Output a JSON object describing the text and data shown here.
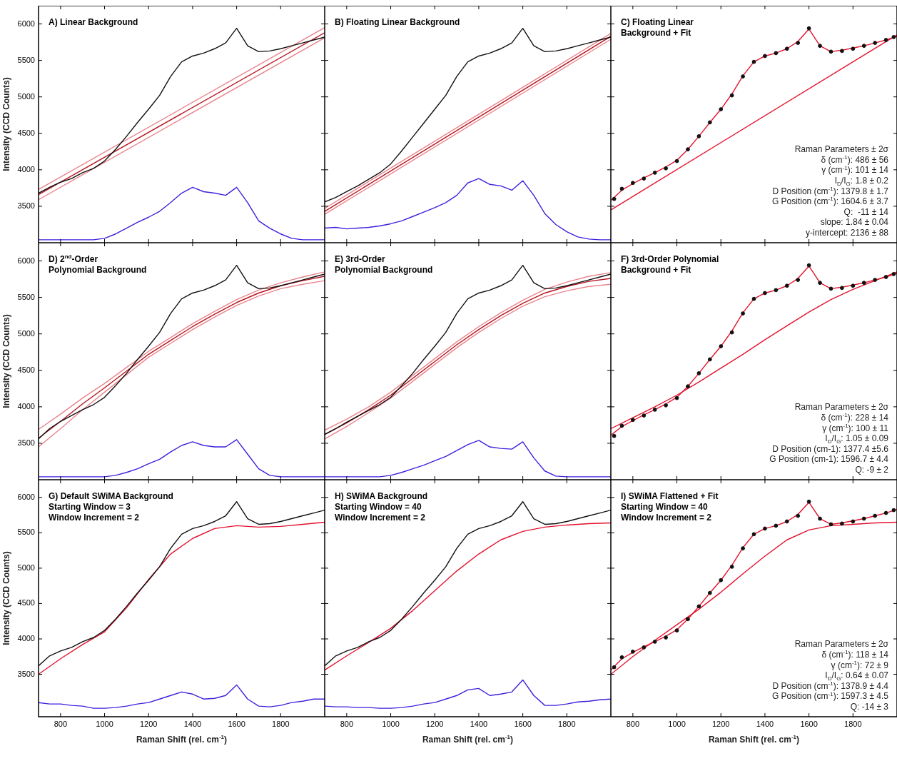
{
  "chart_data": [
    {
      "type": "line",
      "title": "A) Linear Background",
      "ylabel": "Intensity (CCD Counts)",
      "xlim": [
        700,
        2000
      ],
      "ylim": [
        3000,
        6250
      ],
      "xticks": [
        800,
        1000,
        1200,
        1400,
        1600,
        1800
      ],
      "yticks": [
        3500,
        4000,
        4500,
        5000,
        5500,
        6000
      ],
      "tick_labels": "y",
      "x": [
        700,
        750,
        800,
        850,
        900,
        950,
        1000,
        1050,
        1100,
        1150,
        1200,
        1250,
        1300,
        1350,
        1400,
        1450,
        1500,
        1550,
        1600,
        1650,
        1700,
        1750,
        1800,
        1850,
        1900,
        1950,
        2000
      ],
      "series": [
        {
          "color": "#111111",
          "values": [
            3680,
            3760,
            3830,
            3880,
            3960,
            4020,
            4120,
            4280,
            4460,
            4650,
            4830,
            5020,
            5280,
            5480,
            5560,
            5600,
            5660,
            5740,
            5940,
            5700,
            5620,
            5630,
            5660,
            5700,
            5740,
            5780,
            5820
          ]
        },
        {
          "color": "#3b22dd",
          "values": [
            3040,
            3040,
            3040,
            3040,
            3040,
            3040,
            3060,
            3120,
            3200,
            3280,
            3350,
            3430,
            3550,
            3680,
            3760,
            3700,
            3680,
            3650,
            3760,
            3550,
            3300,
            3200,
            3120,
            3060,
            3040,
            3040,
            3040
          ]
        },
        {
          "color": "#e8848c",
          "x": [
            700,
            2000
          ],
          "values": [
            3590,
            5810
          ]
        },
        {
          "color": "#e8848c",
          "x": [
            700,
            2000
          ],
          "values": [
            3730,
            5950
          ]
        },
        {
          "color": "#b5121b",
          "x": [
            700,
            2000
          ],
          "values": [
            3660,
            5880
          ]
        }
      ]
    },
    {
      "type": "line",
      "title": "B) Floating Linear Background",
      "xlim": [
        700,
        2000
      ],
      "ylim": [
        3000,
        6250
      ],
      "xticks": [
        800,
        1000,
        1200,
        1400,
        1600,
        1800
      ],
      "yticks": [
        3500,
        4000,
        4500,
        5000,
        5500,
        6000
      ],
      "tick_labels": false,
      "x": [
        700,
        750,
        800,
        850,
        900,
        950,
        1000,
        1050,
        1100,
        1150,
        1200,
        1250,
        1300,
        1350,
        1400,
        1450,
        1500,
        1550,
        1600,
        1650,
        1700,
        1750,
        1800,
        1850,
        1900,
        1950,
        2000
      ],
      "series": [
        {
          "color": "#111111",
          "values": [
            3560,
            3620,
            3700,
            3780,
            3870,
            3960,
            4080,
            4260,
            4450,
            4640,
            4830,
            5020,
            5280,
            5480,
            5560,
            5600,
            5660,
            5740,
            5940,
            5700,
            5620,
            5630,
            5660,
            5700,
            5740,
            5780,
            5820
          ]
        },
        {
          "color": "#3b22dd",
          "values": [
            3200,
            3210,
            3190,
            3200,
            3210,
            3230,
            3260,
            3300,
            3360,
            3420,
            3480,
            3550,
            3650,
            3820,
            3880,
            3800,
            3780,
            3720,
            3850,
            3650,
            3400,
            3250,
            3150,
            3080,
            3050,
            3040,
            3040
          ]
        },
        {
          "color": "#e8848c",
          "x": [
            700,
            2000
          ],
          "values": [
            3390,
            5790
          ]
        },
        {
          "color": "#e8848c",
          "x": [
            700,
            2000
          ],
          "values": [
            3470,
            5870
          ]
        },
        {
          "color": "#b5121b",
          "x": [
            700,
            2000
          ],
          "values": [
            3430,
            5830
          ]
        }
      ]
    },
    {
      "type": "line",
      "title": "C) Floating Linear\nBackground + Fit",
      "xlim": [
        700,
        2000
      ],
      "ylim": [
        3000,
        6250
      ],
      "xticks": [
        800,
        1000,
        1200,
        1400,
        1600,
        1800
      ],
      "yticks": [
        3500,
        4000,
        4500,
        5000,
        5500,
        6000
      ],
      "tick_labels": false,
      "x": [
        700,
        750,
        800,
        850,
        900,
        950,
        1000,
        1050,
        1100,
        1150,
        1200,
        1250,
        1300,
        1350,
        1400,
        1450,
        1500,
        1550,
        1600,
        1650,
        1700,
        1750,
        1800,
        1850,
        1900,
        1950,
        2000
      ],
      "annotations": [
        "Raman Parameters ± 2σ",
        "δ (cm$^{-1}$): 486 ± 56",
        "γ (cm$^{-1}$): 101 ± 14",
        "I$_{D}$/I$_{G}$: 1.8 ± 0.2",
        "D Position (cm$^{-1}$): 1379.8 ± 1.7",
        "G Position (cm$^{-1}$): 1604.6 ± 3.7",
        "Q:  -11 ± 14",
        "slope: 1.84 ± 0.04",
        "y-intercept: 2136 ± 88"
      ],
      "series": [
        {
          "type": "scatter",
          "marker": "circle",
          "color": "#111111",
          "x": [
            715,
            750,
            800,
            850,
            900,
            950,
            1000,
            1050,
            1100,
            1150,
            1200,
            1250,
            1300,
            1350,
            1400,
            1450,
            1500,
            1550,
            1600,
            1650,
            1700,
            1750,
            1800,
            1850,
            1900,
            1950,
            1985
          ],
          "values": [
            3600,
            3740,
            3820,
            3880,
            3960,
            4020,
            4120,
            4280,
            4460,
            4650,
            4830,
            5020,
            5280,
            5480,
            5560,
            5600,
            5660,
            5740,
            5940,
            5700,
            5620,
            5630,
            5660,
            5700,
            5740,
            5780,
            5820
          ]
        },
        {
          "color": "#e3122d",
          "values": [
            3580,
            3720,
            3810,
            3890,
            3960,
            4040,
            4130,
            4280,
            4460,
            4650,
            4830,
            5040,
            5290,
            5480,
            5560,
            5600,
            5660,
            5760,
            5930,
            5700,
            5620,
            5640,
            5670,
            5700,
            5740,
            5780,
            5830
          ]
        },
        {
          "color": "#e3122d",
          "x": [
            700,
            2000
          ],
          "values": [
            3450,
            5850
          ]
        }
      ]
    },
    {
      "type": "line",
      "title": "D) 2$^{nd}$-Order\nPolynomial Background",
      "ylabel": "Intensity (CCD Counts)",
      "xlim": [
        700,
        2000
      ],
      "ylim": [
        3000,
        6250
      ],
      "xticks": [
        800,
        1000,
        1200,
        1400,
        1600,
        1800
      ],
      "yticks": [
        3500,
        4000,
        4500,
        5000,
        5500,
        6000
      ],
      "tick_labels": "y",
      "x": [
        700,
        750,
        800,
        850,
        900,
        950,
        1000,
        1050,
        1100,
        1150,
        1200,
        1250,
        1300,
        1350,
        1400,
        1450,
        1500,
        1550,
        1600,
        1650,
        1700,
        1750,
        1800,
        1850,
        1900,
        1950,
        2000
      ],
      "series": [
        {
          "color": "#111111",
          "values": [
            3560,
            3700,
            3800,
            3880,
            3960,
            4030,
            4130,
            4290,
            4460,
            4650,
            4830,
            5020,
            5280,
            5480,
            5560,
            5600,
            5660,
            5740,
            5940,
            5700,
            5620,
            5630,
            5660,
            5700,
            5740,
            5780,
            5820
          ]
        },
        {
          "color": "#3b22dd",
          "values": [
            3040,
            3040,
            3040,
            3040,
            3040,
            3040,
            3040,
            3060,
            3100,
            3150,
            3220,
            3280,
            3380,
            3470,
            3520,
            3470,
            3450,
            3450,
            3550,
            3350,
            3150,
            3060,
            3040,
            3040,
            3040,
            3040,
            3040
          ]
        },
        {
          "color": "#e8848c",
          "x": [
            700,
            800,
            900,
            1000,
            1100,
            1200,
            1300,
            1400,
            1500,
            1600,
            1700,
            1800,
            1900,
            2000
          ],
          "values": [
            3450,
            3700,
            3960,
            4200,
            4440,
            4680,
            4870,
            5060,
            5230,
            5390,
            5520,
            5620,
            5680,
            5730
          ]
        },
        {
          "color": "#e8848c",
          "x": [
            700,
            800,
            900,
            1000,
            1100,
            1200,
            1300,
            1400,
            1500,
            1600,
            1700,
            1800,
            1900,
            2000
          ],
          "values": [
            3690,
            3900,
            4120,
            4320,
            4540,
            4760,
            4950,
            5140,
            5310,
            5470,
            5600,
            5700,
            5780,
            5850
          ]
        },
        {
          "color": "#b5121b",
          "x": [
            700,
            800,
            900,
            1000,
            1100,
            1200,
            1300,
            1400,
            1500,
            1600,
            1700,
            1800,
            1900,
            2000
          ],
          "values": [
            3570,
            3800,
            4040,
            4260,
            4490,
            4720,
            4910,
            5100,
            5270,
            5430,
            5560,
            5660,
            5730,
            5790
          ]
        }
      ]
    },
    {
      "type": "line",
      "title": "E) 3rd-Order\nPolynomial Background",
      "xlim": [
        700,
        2000
      ],
      "ylim": [
        3000,
        6250
      ],
      "xticks": [
        800,
        1000,
        1200,
        1400,
        1600,
        1800
      ],
      "yticks": [
        3500,
        4000,
        4500,
        5000,
        5500,
        6000
      ],
      "tick_labels": false,
      "x": [
        700,
        750,
        800,
        850,
        900,
        950,
        1000,
        1050,
        1100,
        1150,
        1200,
        1250,
        1300,
        1350,
        1400,
        1450,
        1500,
        1550,
        1600,
        1650,
        1700,
        1750,
        1800,
        1850,
        1900,
        1950,
        2000
      ],
      "series": [
        {
          "color": "#111111",
          "values": [
            3620,
            3700,
            3790,
            3870,
            3950,
            4030,
            4130,
            4290,
            4460,
            4650,
            4830,
            5020,
            5280,
            5480,
            5560,
            5600,
            5660,
            5740,
            5940,
            5700,
            5620,
            5630,
            5660,
            5700,
            5740,
            5780,
            5820
          ]
        },
        {
          "color": "#3b22dd",
          "values": [
            3040,
            3040,
            3040,
            3040,
            3040,
            3040,
            3060,
            3100,
            3150,
            3200,
            3260,
            3320,
            3400,
            3480,
            3540,
            3450,
            3430,
            3420,
            3520,
            3300,
            3120,
            3050,
            3040,
            3040,
            3040,
            3040,
            3040
          ]
        },
        {
          "color": "#e8848c",
          "x": [
            700,
            800,
            900,
            1000,
            1100,
            1200,
            1300,
            1400,
            1500,
            1600,
            1700,
            1800,
            1900,
            2000
          ],
          "values": [
            3560,
            3730,
            3920,
            4120,
            4350,
            4580,
            4810,
            5020,
            5210,
            5380,
            5510,
            5590,
            5650,
            5680
          ]
        },
        {
          "color": "#e8848c",
          "x": [
            700,
            800,
            900,
            1000,
            1100,
            1200,
            1300,
            1400,
            1500,
            1600,
            1700,
            1800,
            1900,
            2000
          ],
          "values": [
            3680,
            3830,
            4000,
            4200,
            4430,
            4660,
            4890,
            5100,
            5290,
            5460,
            5610,
            5710,
            5790,
            5840
          ]
        },
        {
          "color": "#b5121b",
          "x": [
            700,
            800,
            900,
            1000,
            1100,
            1200,
            1300,
            1400,
            1500,
            1600,
            1700,
            1800,
            1900,
            2000
          ],
          "values": [
            3620,
            3780,
            3960,
            4160,
            4390,
            4620,
            4850,
            5060,
            5250,
            5420,
            5560,
            5650,
            5720,
            5760
          ]
        }
      ]
    },
    {
      "type": "line",
      "title": "F) 3rd-Order Polynomial\nBackground + Fit",
      "xlim": [
        700,
        2000
      ],
      "ylim": [
        3000,
        6250
      ],
      "xticks": [
        800,
        1000,
        1200,
        1400,
        1600,
        1800
      ],
      "yticks": [
        3500,
        4000,
        4500,
        5000,
        5500,
        6000
      ],
      "tick_labels": false,
      "x": [
        700,
        750,
        800,
        850,
        900,
        950,
        1000,
        1050,
        1100,
        1150,
        1200,
        1250,
        1300,
        1350,
        1400,
        1450,
        1500,
        1550,
        1600,
        1650,
        1700,
        1750,
        1800,
        1850,
        1900,
        1950,
        2000
      ],
      "annotations": [
        "Raman Parameters ± 2σ",
        "δ (cm$^{-1}$): 228 ± 14",
        "γ (cm$^{-1}$): 100 ± 11",
        "I$_{D}$/I$_{G}$: 1.05 ± 0.09",
        "D Position (cm-1): 1377.4 ±5.6",
        "G Position (cm-1): 1596.7 ± 4.4",
        "Q: -9 ± 2"
      ],
      "series": [
        {
          "type": "scatter",
          "marker": "circle",
          "color": "#111111",
          "x": [
            715,
            750,
            800,
            850,
            900,
            950,
            1000,
            1050,
            1100,
            1150,
            1200,
            1250,
            1300,
            1350,
            1400,
            1450,
            1500,
            1550,
            1600,
            1650,
            1700,
            1750,
            1800,
            1850,
            1900,
            1950,
            1985
          ],
          "values": [
            3600,
            3740,
            3820,
            3880,
            3960,
            4020,
            4120,
            4280,
            4460,
            4650,
            4830,
            5020,
            5280,
            5480,
            5560,
            5600,
            5660,
            5740,
            5940,
            5700,
            5620,
            5630,
            5660,
            5700,
            5740,
            5780,
            5820
          ]
        },
        {
          "color": "#e3122d",
          "values": [
            3610,
            3730,
            3810,
            3890,
            3960,
            4040,
            4130,
            4280,
            4460,
            4650,
            4830,
            5040,
            5290,
            5480,
            5560,
            5600,
            5660,
            5760,
            5930,
            5700,
            5620,
            5640,
            5670,
            5700,
            5740,
            5780,
            5830
          ]
        },
        {
          "color": "#e3122d",
          "x": [
            700,
            800,
            900,
            1000,
            1100,
            1200,
            1300,
            1400,
            1500,
            1600,
            1700,
            1800,
            1900,
            2000
          ],
          "values": [
            3700,
            3850,
            4000,
            4160,
            4340,
            4530,
            4720,
            4920,
            5110,
            5300,
            5470,
            5610,
            5730,
            5850
          ]
        }
      ]
    },
    {
      "type": "line",
      "title": "G) Default SWiMA Background\nStarting Window = 3\nWindow Increment = 2",
      "xlabel": "Raman Shift (rel. cm$^{-1}$)",
      "ylabel": "Intensity (CCD Counts)",
      "xlim": [
        700,
        2000
      ],
      "ylim": [
        2900,
        6250
      ],
      "xticks": [
        800,
        1000,
        1200,
        1400,
        1600,
        1800
      ],
      "yticks": [
        3500,
        4000,
        4500,
        5000,
        5500,
        6000
      ],
      "x": [
        700,
        750,
        800,
        850,
        900,
        950,
        1000,
        1050,
        1100,
        1150,
        1200,
        1250,
        1300,
        1350,
        1400,
        1450,
        1500,
        1550,
        1600,
        1650,
        1700,
        1750,
        1800,
        1850,
        1900,
        1950,
        2000
      ],
      "series": [
        {
          "color": "#111111",
          "values": [
            3620,
            3760,
            3830,
            3880,
            3960,
            4020,
            4120,
            4280,
            4460,
            4650,
            4830,
            5020,
            5280,
            5480,
            5560,
            5600,
            5660,
            5740,
            5940,
            5700,
            5620,
            5630,
            5660,
            5700,
            5740,
            5780,
            5820
          ]
        },
        {
          "color": "#3b22dd",
          "values": [
            3100,
            3080,
            3080,
            3060,
            3050,
            3020,
            3020,
            3030,
            3050,
            3080,
            3100,
            3150,
            3200,
            3250,
            3220,
            3150,
            3160,
            3200,
            3350,
            3150,
            3050,
            3040,
            3060,
            3100,
            3120,
            3150,
            3150
          ]
        },
        {
          "color": "#e3122d",
          "x": [
            700,
            800,
            900,
            1000,
            1100,
            1200,
            1300,
            1400,
            1500,
            1600,
            1700,
            1800,
            1900,
            2000
          ],
          "values": [
            3500,
            3720,
            3920,
            4100,
            4440,
            4840,
            5200,
            5420,
            5560,
            5600,
            5580,
            5590,
            5620,
            5650
          ]
        }
      ]
    },
    {
      "type": "line",
      "title": "H) SWiMA Background\nStarting Window = 40\nWindow Increment = 2",
      "xlabel": "Raman Shift (rel. cm$^{-1}$)",
      "xlim": [
        700,
        2000
      ],
      "ylim": [
        2900,
        6250
      ],
      "xticks": [
        800,
        1000,
        1200,
        1400,
        1600,
        1800
      ],
      "yticks": [
        3500,
        4000,
        4500,
        5000,
        5500,
        6000
      ],
      "tick_labels": "x",
      "x": [
        700,
        750,
        800,
        850,
        900,
        950,
        1000,
        1050,
        1100,
        1150,
        1200,
        1250,
        1300,
        1350,
        1400,
        1450,
        1500,
        1550,
        1600,
        1650,
        1700,
        1750,
        1800,
        1850,
        1900,
        1950,
        2000
      ],
      "series": [
        {
          "color": "#111111",
          "values": [
            3620,
            3760,
            3830,
            3880,
            3960,
            4020,
            4120,
            4280,
            4460,
            4650,
            4830,
            5020,
            5280,
            5480,
            5560,
            5600,
            5660,
            5740,
            5940,
            5700,
            5620,
            5630,
            5660,
            5700,
            5740,
            5780,
            5820
          ]
        },
        {
          "color": "#3b22dd",
          "values": [
            3050,
            3040,
            3040,
            3030,
            3030,
            3020,
            3020,
            3030,
            3050,
            3080,
            3100,
            3150,
            3200,
            3280,
            3300,
            3200,
            3220,
            3250,
            3420,
            3200,
            3060,
            3060,
            3080,
            3110,
            3120,
            3140,
            3150
          ]
        },
        {
          "color": "#e3122d",
          "x": [
            700,
            800,
            900,
            1000,
            1100,
            1200,
            1300,
            1400,
            1500,
            1600,
            1700,
            1800,
            1900,
            2000
          ],
          "values": [
            3560,
            3760,
            3950,
            4150,
            4400,
            4680,
            4960,
            5200,
            5400,
            5520,
            5580,
            5610,
            5630,
            5640
          ]
        }
      ]
    },
    {
      "type": "line",
      "title": "I) SWiMA Flattened + Fit\nStarting Window = 40\nWindow Increment = 2",
      "xlabel": "Raman Shift (rel. cm$^{-1}$)",
      "xlim": [
        700,
        2000
      ],
      "ylim": [
        2900,
        6250
      ],
      "xticks": [
        800,
        1000,
        1200,
        1400,
        1600,
        1800
      ],
      "yticks": [
        3500,
        4000,
        4500,
        5000,
        5500,
        6000
      ],
      "tick_labels": "x",
      "x": [
        700,
        750,
        800,
        850,
        900,
        950,
        1000,
        1050,
        1100,
        1150,
        1200,
        1250,
        1300,
        1350,
        1400,
        1450,
        1500,
        1550,
        1600,
        1650,
        1700,
        1750,
        1800,
        1850,
        1900,
        1950,
        2000
      ],
      "annotations": [
        "Raman Parameters ± 2σ",
        "δ (cm$^{-1}$): 118 ± 14",
        "γ (cm$^{-1}$): 72 ± 9",
        "I$_{D}$/I$_{G}$: 0.64 ± 0.07",
        "D Position (cm$^{-1}$): 1378.9 ± 4.4",
        "G Position (cm$^{-1}$): 1597.3 ± 4.5",
        "Q: -14 ± 3"
      ],
      "series": [
        {
          "type": "scatter",
          "marker": "circle",
          "color": "#111111",
          "x": [
            715,
            750,
            800,
            850,
            900,
            950,
            1000,
            1050,
            1100,
            1150,
            1200,
            1250,
            1300,
            1350,
            1400,
            1450,
            1500,
            1550,
            1600,
            1650,
            1700,
            1750,
            1800,
            1850,
            1900,
            1950,
            1985
          ],
          "values": [
            3600,
            3740,
            3820,
            3880,
            3960,
            4020,
            4120,
            4280,
            4460,
            4650,
            4830,
            5020,
            5280,
            5480,
            5560,
            5600,
            5660,
            5740,
            5940,
            5700,
            5620,
            5630,
            5660,
            5700,
            5740,
            5780,
            5820
          ]
        },
        {
          "color": "#e3122d",
          "values": [
            3560,
            3720,
            3810,
            3890,
            3960,
            4040,
            4130,
            4280,
            4460,
            4650,
            4830,
            5040,
            5290,
            5480,
            5560,
            5600,
            5660,
            5760,
            5930,
            5700,
            5620,
            5640,
            5670,
            5700,
            5740,
            5780,
            5830
          ]
        },
        {
          "color": "#e3122d",
          "x": [
            700,
            800,
            900,
            1000,
            1100,
            1200,
            1300,
            1400,
            1500,
            1600,
            1700,
            1800,
            1900,
            2000
          ],
          "values": [
            3500,
            3750,
            3980,
            4200,
            4420,
            4660,
            4920,
            5170,
            5400,
            5540,
            5600,
            5620,
            5640,
            5650
          ]
        }
      ]
    }
  ]
}
